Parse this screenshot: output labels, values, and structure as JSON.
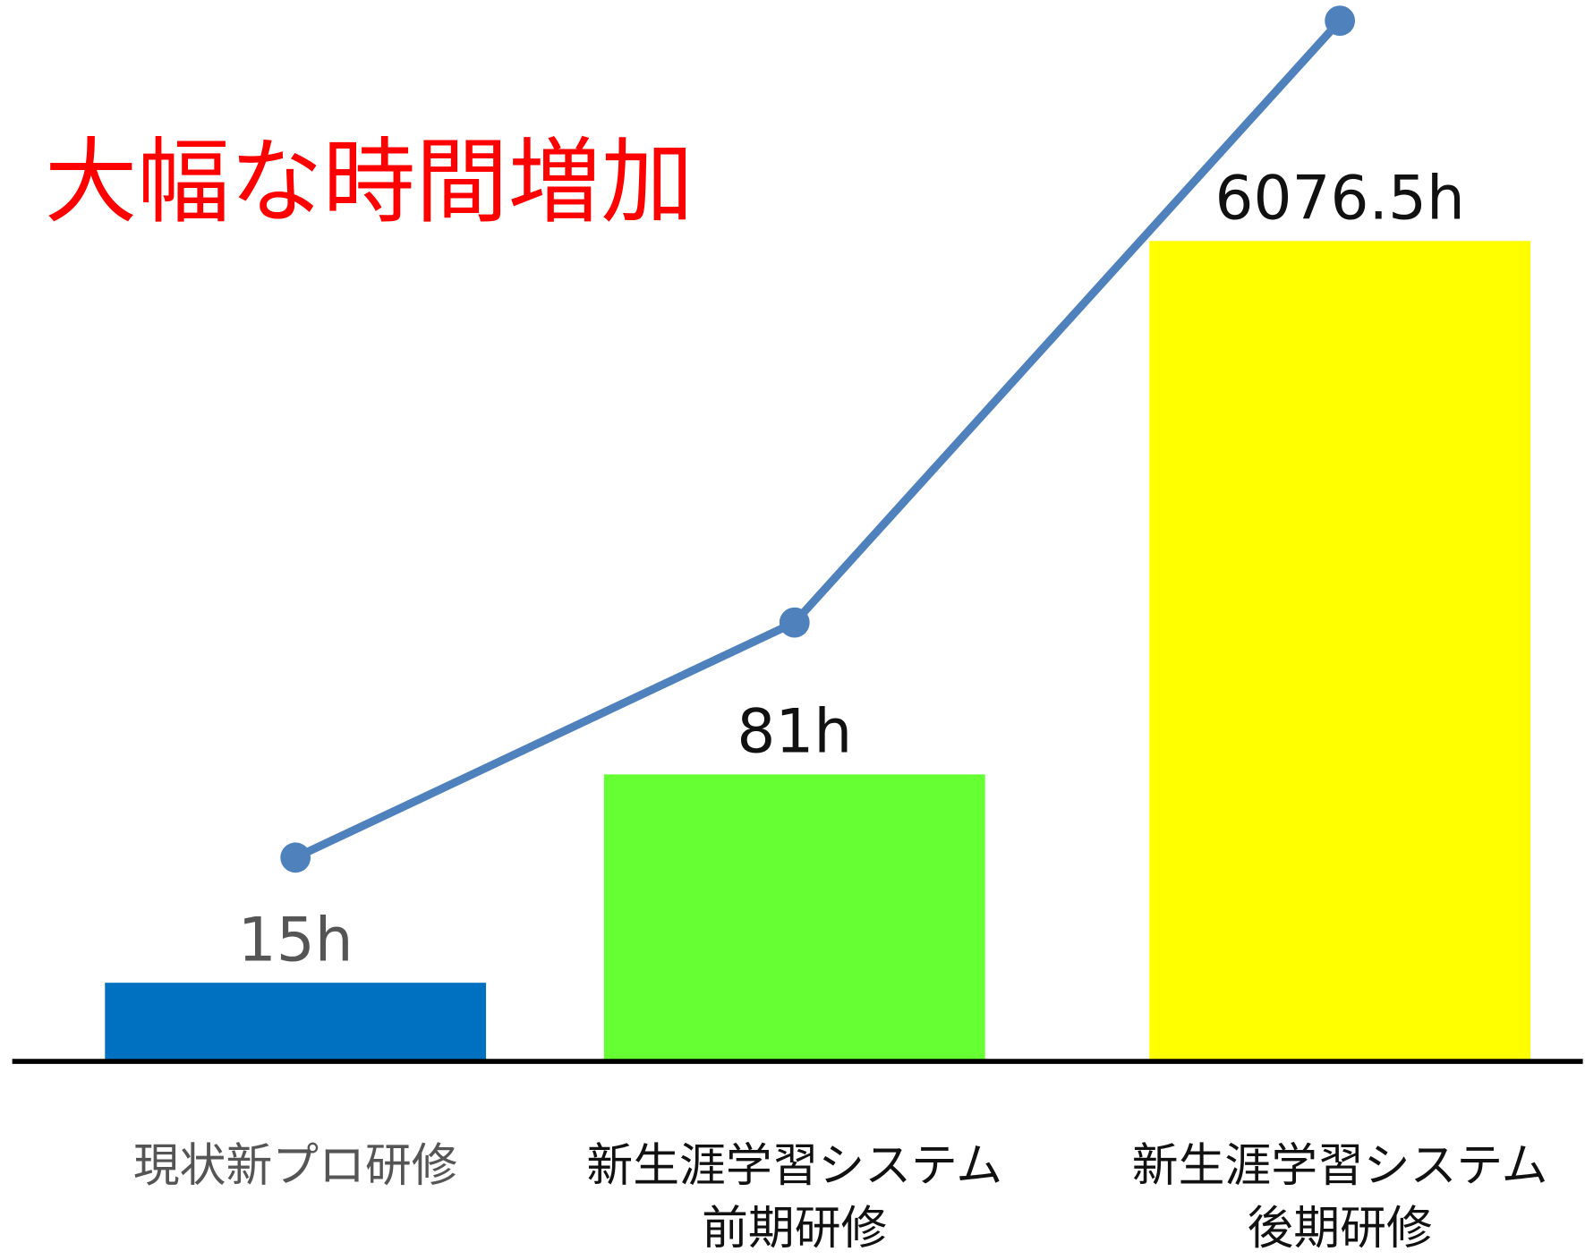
{
  "chart_data": {
    "type": "bar",
    "annotation": "大幅な時間増加",
    "categories": [
      "現状新プロ研修",
      "新生涯学習システム\n前期研修",
      "新生涯学習システム\n後期研修"
    ],
    "series": [
      {
        "type": "bar",
        "colors": [
          "#0070c0",
          "#66ff33",
          "#ffff00"
        ],
        "values": [
          15,
          81,
          6076.5
        ],
        "value_labels": [
          "15h",
          "81h",
          "6076.5h"
        ]
      },
      {
        "type": "line",
        "color": "#4f81bd",
        "values": [
          15,
          81,
          6076.5
        ],
        "axis": "y2"
      }
    ],
    "ylim": [
      8,
      10000
    ],
    "y2lim": [
      3.5,
      7000
    ],
    "log_scale": true,
    "grid": false
  }
}
